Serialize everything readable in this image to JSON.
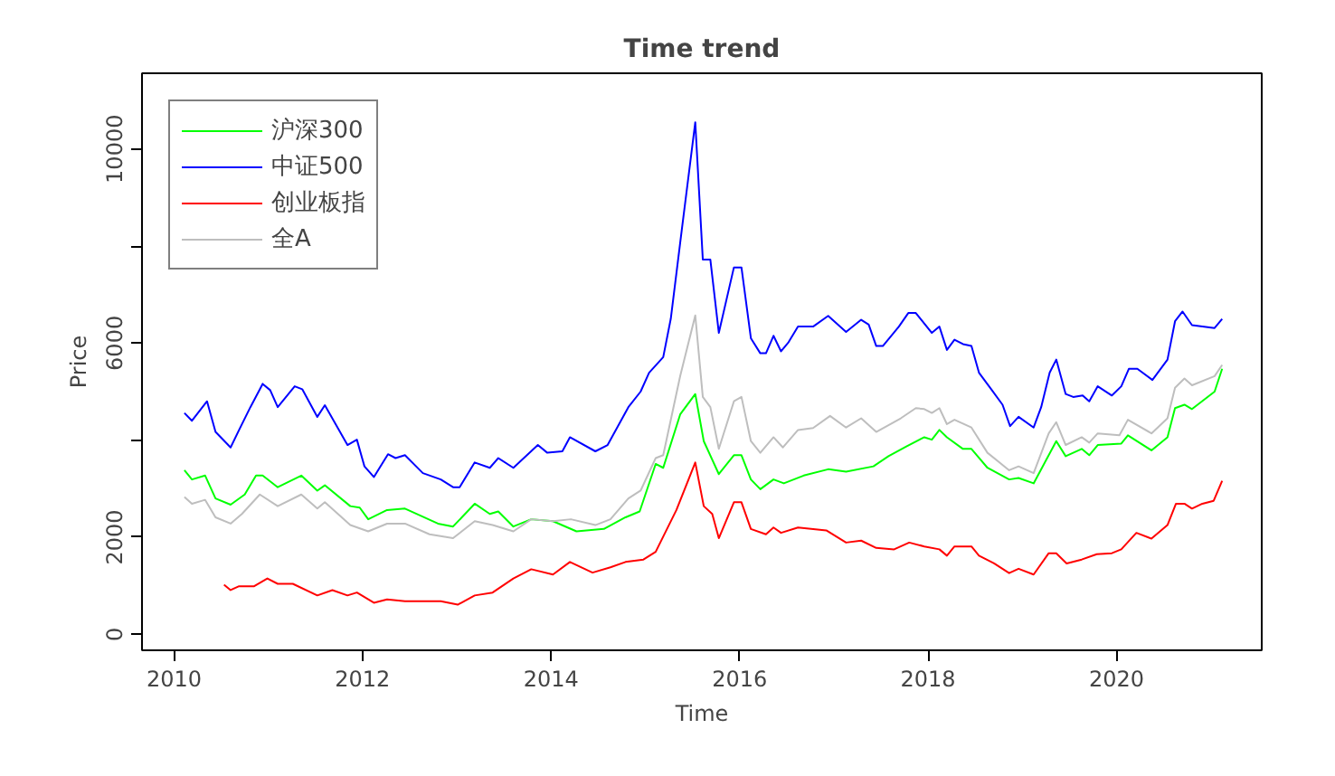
{
  "chart_data": {
    "type": "line",
    "title": "Time trend",
    "xlabel": "Time",
    "ylabel": "Price",
    "xlim": [
      2009.66,
      2021.54
    ],
    "ylim": [
      -330,
      11560
    ],
    "xticks": [
      2010,
      2012,
      2014,
      2016,
      2018,
      2020
    ],
    "yticks": [
      0,
      2000,
      {
        "value": 4000,
        "label": null
      },
      6000,
      {
        "value": 8000,
        "label": null
      },
      10000
    ],
    "grid": false,
    "legend": "top left",
    "line_style": "solid",
    "marker": "none",
    "series": [
      {
        "name": "沪深300",
        "color": "#00ff00",
        "x": [
          2010.11,
          2010.19,
          2010.33,
          2010.44,
          2010.6,
          2010.75,
          2010.87,
          2010.94,
          2011.1,
          2011.35,
          2011.52,
          2011.6,
          2011.87,
          2011.97,
          2012.06,
          2012.26,
          2012.45,
          2012.8,
          2012.96,
          2013.19,
          2013.35,
          2013.44,
          2013.6,
          2013.79,
          2014.02,
          2014.27,
          2014.56,
          2014.79,
          2014.94,
          2015.11,
          2015.19,
          2015.37,
          2015.53,
          2015.62,
          2015.78,
          2015.94,
          2016.02,
          2016.12,
          2016.22,
          2016.36,
          2016.47,
          2016.68,
          2016.94,
          2017.13,
          2017.42,
          2017.58,
          2017.77,
          2017.96,
          2018.04,
          2018.12,
          2018.2,
          2018.37,
          2018.46,
          2018.63,
          2018.86,
          2018.96,
          2019.12,
          2019.36,
          2019.46,
          2019.63,
          2019.71,
          2019.8,
          2020.05,
          2020.12,
          2020.37,
          2020.54,
          2020.62,
          2020.72,
          2020.8,
          2021.04,
          2021.12
        ],
        "values": [
          3380,
          3190,
          3270,
          2800,
          2670,
          2880,
          3270,
          3270,
          3030,
          3270,
          2960,
          3070,
          2640,
          2610,
          2370,
          2560,
          2590,
          2280,
          2220,
          2690,
          2480,
          2530,
          2220,
          2370,
          2330,
          2120,
          2170,
          2410,
          2530,
          3510,
          3430,
          4530,
          4950,
          3980,
          3300,
          3690,
          3690,
          3190,
          2990,
          3190,
          3110,
          3270,
          3400,
          3350,
          3460,
          3670,
          3870,
          4060,
          4010,
          4210,
          4060,
          3820,
          3820,
          3430,
          3190,
          3220,
          3110,
          3980,
          3670,
          3820,
          3690,
          3900,
          3930,
          4100,
          3790,
          4060,
          4660,
          4730,
          4640,
          5000,
          5470
        ]
      },
      {
        "name": "中证500",
        "color": "#0000ff",
        "x": [
          2010.11,
          2010.19,
          2010.35,
          2010.44,
          2010.6,
          2010.69,
          2010.81,
          2010.94,
          2011.02,
          2011.1,
          2011.28,
          2011.36,
          2011.52,
          2011.6,
          2011.84,
          2011.94,
          2012.02,
          2012.12,
          2012.27,
          2012.35,
          2012.45,
          2012.64,
          2012.83,
          2012.96,
          2013.03,
          2013.19,
          2013.35,
          2013.44,
          2013.6,
          2013.86,
          2013.96,
          2014.12,
          2014.2,
          2014.47,
          2014.6,
          2014.82,
          2014.95,
          2015.04,
          2015.19,
          2015.27,
          2015.37,
          2015.53,
          2015.61,
          2015.69,
          2015.78,
          2015.94,
          2016.02,
          2016.12,
          2016.22,
          2016.28,
          2016.36,
          2016.44,
          2016.52,
          2016.62,
          2016.78,
          2016.94,
          2017.13,
          2017.29,
          2017.37,
          2017.45,
          2017.52,
          2017.69,
          2017.79,
          2017.87,
          2018.04,
          2018.12,
          2018.2,
          2018.28,
          2018.37,
          2018.46,
          2018.54,
          2018.67,
          2018.79,
          2018.87,
          2018.96,
          2019.12,
          2019.2,
          2019.29,
          2019.36,
          2019.46,
          2019.54,
          2019.64,
          2019.71,
          2019.8,
          2019.95,
          2020.05,
          2020.13,
          2020.22,
          2020.38,
          2020.54,
          2020.62,
          2020.7,
          2020.8,
          2021.04,
          2021.12
        ],
        "values": [
          4560,
          4400,
          4800,
          4170,
          3850,
          4210,
          4680,
          5160,
          5030,
          4680,
          5110,
          5050,
          4480,
          4720,
          3900,
          4010,
          3460,
          3240,
          3710,
          3630,
          3690,
          3320,
          3190,
          3030,
          3030,
          3540,
          3430,
          3630,
          3430,
          3900,
          3740,
          3770,
          4060,
          3770,
          3900,
          4680,
          5000,
          5390,
          5710,
          6500,
          8070,
          10550,
          7720,
          7720,
          6210,
          7560,
          7560,
          6100,
          5790,
          5790,
          6150,
          5830,
          6020,
          6340,
          6340,
          6560,
          6230,
          6480,
          6380,
          5940,
          5940,
          6340,
          6620,
          6620,
          6210,
          6340,
          5860,
          6070,
          5980,
          5940,
          5390,
          5050,
          4730,
          4290,
          4480,
          4260,
          4680,
          5390,
          5660,
          4950,
          4890,
          4920,
          4800,
          5110,
          4920,
          5110,
          5470,
          5470,
          5240,
          5660,
          6450,
          6650,
          6370,
          6310,
          6500
        ]
      },
      {
        "name": "创业板指",
        "color": "#ff0000",
        "x": [
          2010.53,
          2010.6,
          2010.69,
          2010.85,
          2010.99,
          2011.1,
          2011.26,
          2011.52,
          2011.68,
          2011.84,
          2011.94,
          2012.12,
          2012.26,
          2012.45,
          2012.83,
          2013.01,
          2013.19,
          2013.38,
          2013.6,
          2013.79,
          2014.02,
          2014.2,
          2014.44,
          2014.63,
          2014.79,
          2014.98,
          2015.11,
          2015.33,
          2015.53,
          2015.62,
          2015.71,
          2015.78,
          2015.94,
          2016.02,
          2016.12,
          2016.28,
          2016.36,
          2016.44,
          2016.62,
          2016.92,
          2017.13,
          2017.29,
          2017.45,
          2017.64,
          2017.8,
          2017.96,
          2018.12,
          2018.2,
          2018.28,
          2018.46,
          2018.54,
          2018.7,
          2018.86,
          2018.96,
          2019.12,
          2019.28,
          2019.36,
          2019.47,
          2019.63,
          2019.79,
          2019.95,
          2020.05,
          2020.21,
          2020.37,
          2020.54,
          2020.63,
          2020.72,
          2020.8,
          2020.91,
          2021.03,
          2021.12
        ],
        "values": [
          1020,
          910,
          990,
          990,
          1150,
          1040,
          1040,
          800,
          910,
          800,
          860,
          650,
          720,
          680,
          680,
          610,
          800,
          860,
          1150,
          1340,
          1230,
          1490,
          1270,
          1380,
          1490,
          1540,
          1700,
          2560,
          3540,
          2640,
          2480,
          1980,
          2720,
          2720,
          2170,
          2060,
          2200,
          2090,
          2200,
          2140,
          1890,
          1930,
          1780,
          1750,
          1890,
          1810,
          1750,
          1620,
          1810,
          1810,
          1620,
          1460,
          1260,
          1350,
          1230,
          1670,
          1670,
          1460,
          1540,
          1650,
          1670,
          1750,
          2090,
          1970,
          2250,
          2690,
          2690,
          2590,
          2690,
          2750,
          3160
        ]
      },
      {
        "name": "全A",
        "color": "#bebebe",
        "x": [
          2010.11,
          2010.19,
          2010.33,
          2010.44,
          2010.6,
          2010.72,
          2010.91,
          2011.1,
          2011.35,
          2011.52,
          2011.6,
          2011.87,
          2012.06,
          2012.26,
          2012.45,
          2012.71,
          2012.96,
          2013.19,
          2013.38,
          2013.6,
          2013.79,
          2014.02,
          2014.21,
          2014.47,
          2014.63,
          2014.82,
          2014.95,
          2015.11,
          2015.19,
          2015.37,
          2015.53,
          2015.61,
          2015.69,
          2015.78,
          2015.94,
          2016.02,
          2016.12,
          2016.22,
          2016.36,
          2016.46,
          2016.62,
          2016.78,
          2016.96,
          2017.13,
          2017.29,
          2017.45,
          2017.71,
          2017.87,
          2017.96,
          2018.04,
          2018.12,
          2018.2,
          2018.28,
          2018.46,
          2018.63,
          2018.86,
          2018.96,
          2019.12,
          2019.28,
          2019.36,
          2019.46,
          2019.63,
          2019.71,
          2019.8,
          2020.03,
          2020.12,
          2020.37,
          2020.54,
          2020.62,
          2020.72,
          2020.8,
          2021.04,
          2021.12
        ],
        "values": [
          2830,
          2690,
          2770,
          2410,
          2280,
          2480,
          2880,
          2640,
          2880,
          2590,
          2720,
          2250,
          2120,
          2280,
          2280,
          2060,
          1980,
          2330,
          2250,
          2120,
          2370,
          2330,
          2370,
          2250,
          2370,
          2800,
          2960,
          3630,
          3690,
          5320,
          6570,
          4890,
          4680,
          3820,
          4800,
          4890,
          3980,
          3740,
          4060,
          3850,
          4210,
          4250,
          4500,
          4260,
          4450,
          4170,
          4450,
          4660,
          4640,
          4560,
          4660,
          4330,
          4420,
          4260,
          3740,
          3380,
          3460,
          3320,
          4140,
          4370,
          3900,
          4060,
          3950,
          4140,
          4100,
          4420,
          4140,
          4450,
          5080,
          5270,
          5130,
          5320,
          5550
        ]
      }
    ]
  }
}
